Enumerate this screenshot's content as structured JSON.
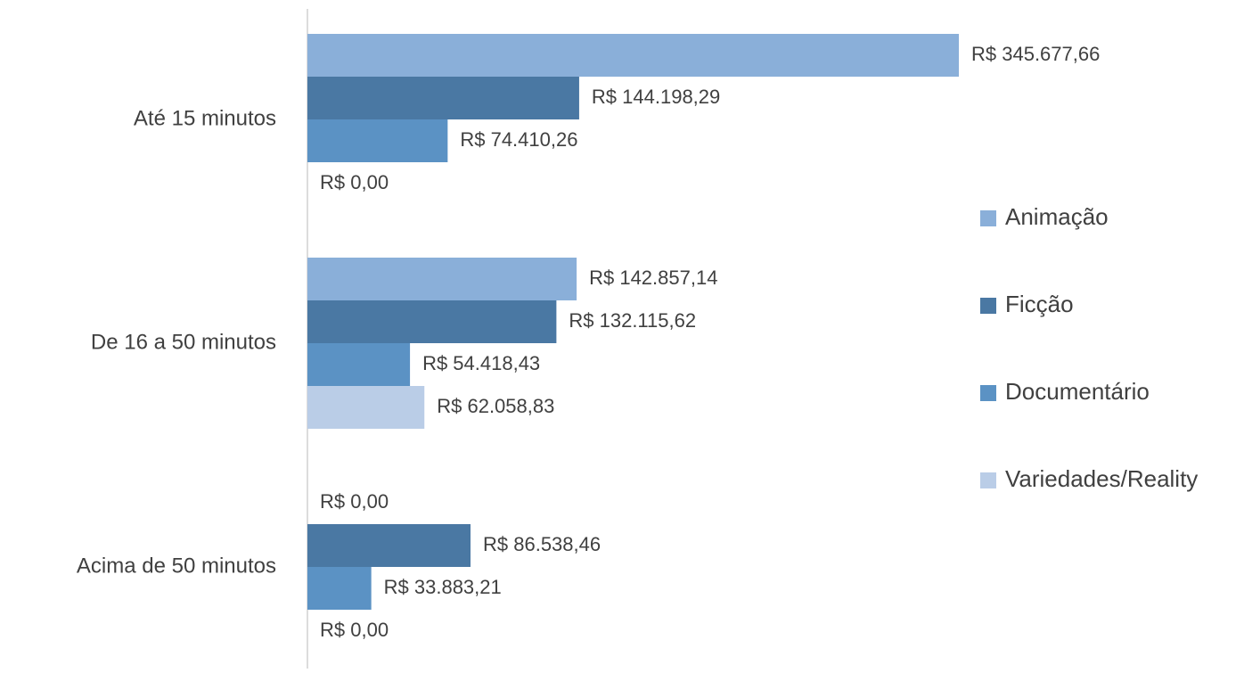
{
  "chart_data": {
    "type": "bar",
    "orientation": "horizontal",
    "categories": [
      "Até 15 minutos",
      "De 16 a 50 minutos",
      "Acima de 50 minutos"
    ],
    "series": [
      {
        "name": "Animação",
        "color": "#8aafd9",
        "values": [
          345677.66,
          142857.14,
          0
        ],
        "value_labels": [
          "R$ 345.677,66",
          "R$ 142.857,14",
          "R$ 0,00"
        ]
      },
      {
        "name": "Ficção",
        "color": "#4a78a3",
        "values": [
          144198.29,
          132115.62,
          86538.46
        ],
        "value_labels": [
          "R$ 144.198,29",
          "R$ 132.115,62",
          "R$ 86.538,46"
        ]
      },
      {
        "name": "Documentário",
        "color": "#5b92c4",
        "values": [
          74410.26,
          54418.43,
          33883.21
        ],
        "value_labels": [
          "R$ 74.410,26",
          "R$ 54.418,43",
          "R$ 33.883,21"
        ]
      },
      {
        "name": "Variedades/Reality",
        "color": "#bacde7",
        "values": [
          0,
          62058.83,
          0
        ],
        "value_labels": [
          "R$ 0,00",
          "R$ 62.058,83",
          "R$ 0,00"
        ]
      }
    ],
    "legend": "right"
  }
}
